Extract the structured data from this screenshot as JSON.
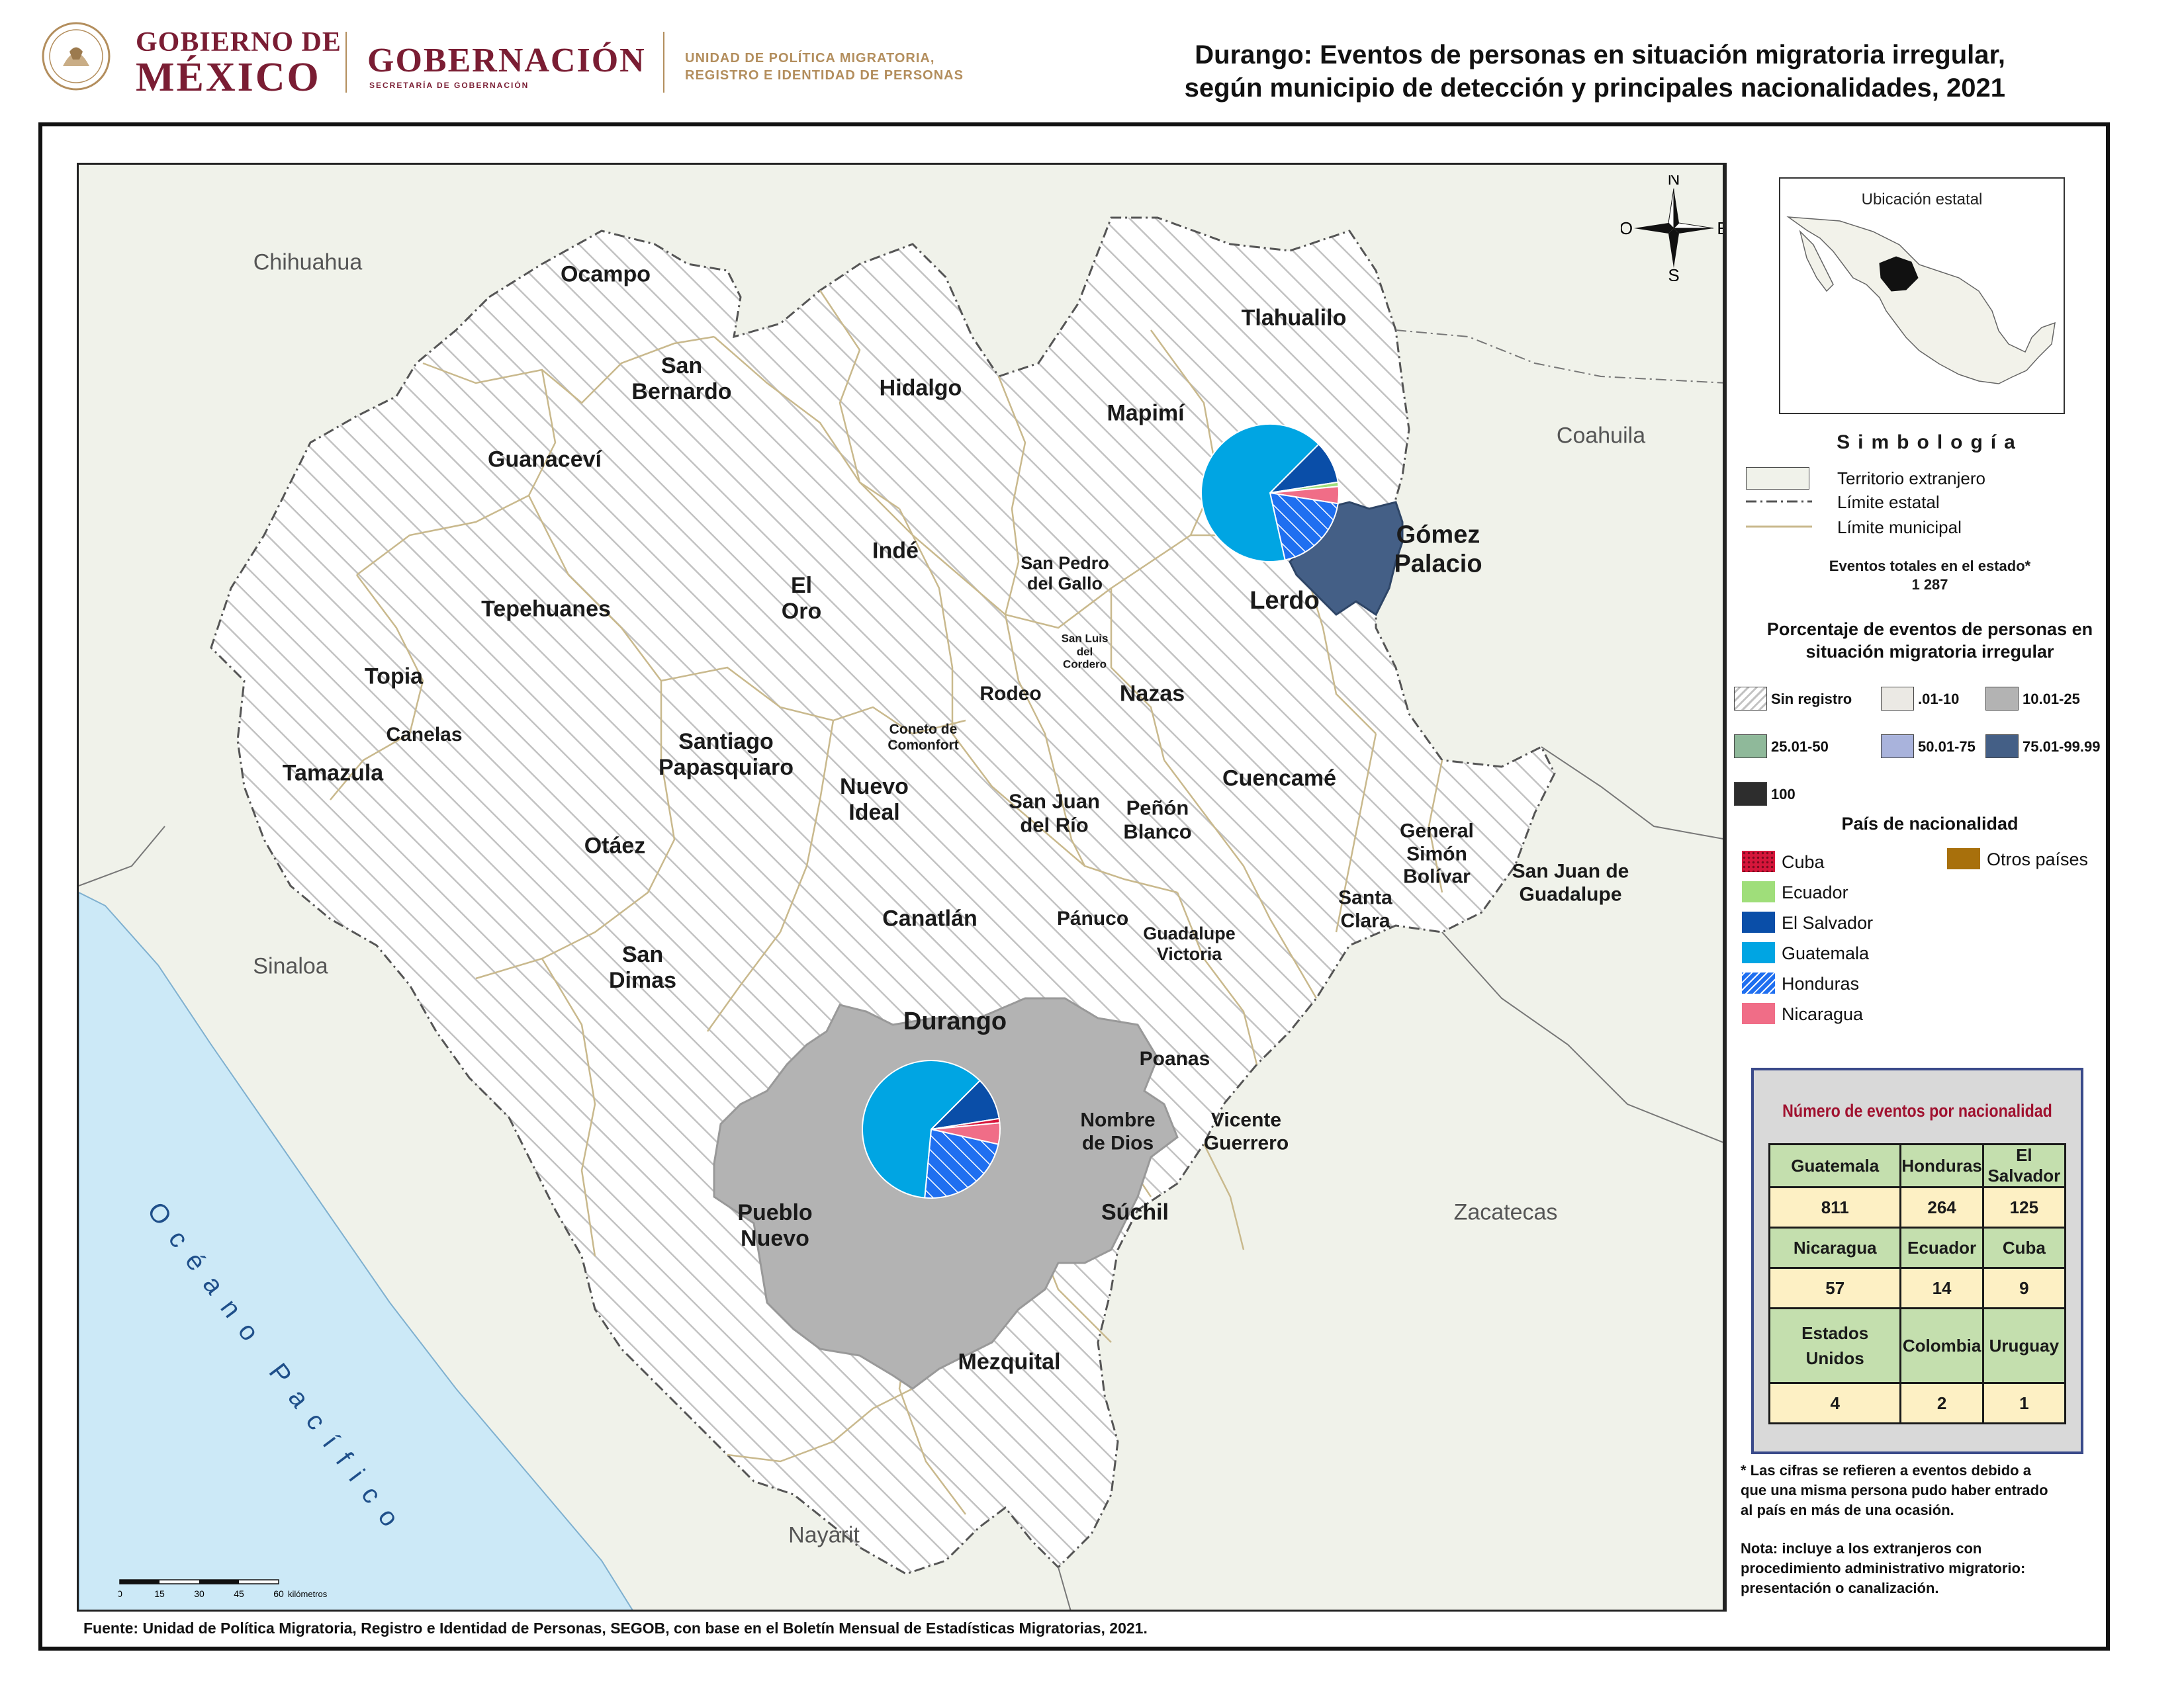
{
  "header": {
    "gob_line1": "GOBIERNO DE",
    "gob_line2": "MÉXICO",
    "gobernacion": "GOBERNACIÓN",
    "secretaria": "SECRETARÍA DE GOBERNACIÓN",
    "unidad_line1": "UNIDAD DE POLÍTICA MIGRATORIA,",
    "unidad_line2": "REGISTRO E IDENTIDAD DE PERSONAS",
    "title_line1": "Durango: Eventos de personas en situación migratoria irregular,",
    "title_line2": "según municipio de detección y principales nacionalidades, 2021"
  },
  "map": {
    "neighbors": [
      "Chihuahua",
      "Coahuila",
      "Sinaloa",
      "Zacatecas",
      "Nayarit"
    ],
    "ocean_label": "Océano Pacífico",
    "compass": {
      "n": "N",
      "s": "S",
      "e": "E",
      "o": "O"
    },
    "scale": {
      "ticks": [
        "0",
        "15",
        "30",
        "45",
        "60"
      ],
      "unit": "kilómetros"
    },
    "municipalities": [
      {
        "name": "Ocampo",
        "category": "Sin registro"
      },
      {
        "name": "San Bernardo",
        "category": "Sin registro"
      },
      {
        "name": "Hidalgo",
        "category": "Sin registro"
      },
      {
        "name": "Mapimí",
        "category": "Sin registro"
      },
      {
        "name": "Tlahualilo",
        "category": "Sin registro"
      },
      {
        "name": "Guanaceví",
        "category": "Sin registro"
      },
      {
        "name": "Indé",
        "category": "Sin registro"
      },
      {
        "name": "El Oro",
        "category": "Sin registro"
      },
      {
        "name": "San Pedro del Gallo",
        "category": "Sin registro"
      },
      {
        "name": "Gómez Palacio",
        "category": "75.01-99.99"
      },
      {
        "name": "Lerdo",
        "category": "Sin registro"
      },
      {
        "name": "Tepehuanes",
        "category": "Sin registro"
      },
      {
        "name": "San Luis del Cordero",
        "category": "Sin registro"
      },
      {
        "name": "Topia",
        "category": "Sin registro"
      },
      {
        "name": "Rodeo",
        "category": "Sin registro"
      },
      {
        "name": "Nazas",
        "category": "Sin registro"
      },
      {
        "name": "Canelas",
        "category": "Sin registro"
      },
      {
        "name": "Coneto de Comonfort",
        "category": "Sin registro"
      },
      {
        "name": "Santiago Papasquiaro",
        "category": "Sin registro"
      },
      {
        "name": "Tamazula",
        "category": "Sin registro"
      },
      {
        "name": "Nuevo Ideal",
        "category": "Sin registro"
      },
      {
        "name": "San Juan del Río",
        "category": "Sin registro"
      },
      {
        "name": "Cuencamé",
        "category": "Sin registro"
      },
      {
        "name": "Peñón Blanco",
        "category": "Sin registro"
      },
      {
        "name": "Otáez",
        "category": "Sin registro"
      },
      {
        "name": "General Simón Bolívar",
        "category": "Sin registro"
      },
      {
        "name": "San Juan de Guadalupe",
        "category": "Sin registro"
      },
      {
        "name": "Santa Clara",
        "category": "Sin registro"
      },
      {
        "name": "Canatlán",
        "category": "Sin registro"
      },
      {
        "name": "Pánuco",
        "category": "Sin registro"
      },
      {
        "name": "Guadalupe Victoria",
        "category": "Sin registro"
      },
      {
        "name": "San Dimas",
        "category": "Sin registro"
      },
      {
        "name": "Durango",
        "category": "10.01-25"
      },
      {
        "name": "Poanas",
        "category": "Sin registro"
      },
      {
        "name": "Nombre de Dios",
        "category": "Sin registro"
      },
      {
        "name": "Vicente Guerrero",
        "category": "Sin registro"
      },
      {
        "name": "Pueblo Nuevo",
        "category": "Sin registro"
      },
      {
        "name": "Súchil",
        "category": "Sin registro"
      },
      {
        "name": "Mezquital",
        "category": "Sin registro"
      }
    ],
    "pies": [
      {
        "municipio": "Gómez Palacio",
        "shares": [
          {
            "country": "Guatemala",
            "value": 66
          },
          {
            "country": "El Salvador",
            "value": 10
          },
          {
            "country": "Ecuador",
            "value": 1
          },
          {
            "country": "Nicaragua",
            "value": 4
          },
          {
            "country": "Honduras",
            "value": 19
          }
        ]
      },
      {
        "municipio": "Durango",
        "shares": [
          {
            "country": "Guatemala",
            "value": 61
          },
          {
            "country": "El Salvador",
            "value": 10
          },
          {
            "country": "Cuba",
            "value": 1
          },
          {
            "country": "Nicaragua",
            "value": 5
          },
          {
            "country": "Honduras",
            "value": 23
          }
        ]
      }
    ]
  },
  "sidebar": {
    "inset_title": "Ubicación estatal",
    "simbologia": "Simbología",
    "legend_items": [
      "Territorio extranjero",
      "Límite estatal",
      "Límite municipal"
    ],
    "total_label": "Eventos totales en el estado*",
    "total_value": "1 287",
    "pct_title_line1": "Porcentaje de eventos de personas en",
    "pct_title_line2": "situación migratoria irregular",
    "categories": [
      {
        "label": "Sin registro",
        "color": "#ffffff"
      },
      {
        "label": ".01-10",
        "color": "#ebe9e4"
      },
      {
        "label": "10.01-25",
        "color": "#b3b3b3"
      },
      {
        "label": "25.01-50",
        "color": "#8fb99a"
      },
      {
        "label": "50.01-75",
        "color": "#a9b3dc"
      },
      {
        "label": "75.01-99.99",
        "color": "#445f86"
      },
      {
        "label": "100",
        "color": "#2d2d2d"
      }
    ],
    "nat_title": "País de nacionalidad",
    "nationalities": [
      {
        "label": "Cuba",
        "color": "#d6163b"
      },
      {
        "label": "Ecuador",
        "color": "#9fde7a"
      },
      {
        "label": "El Salvador",
        "color": "#0a4ea8"
      },
      {
        "label": "Guatemala",
        "color": "#00a5e3"
      },
      {
        "label": "Honduras",
        "color": "#1f6ff0"
      },
      {
        "label": "Nicaragua",
        "color": "#f06d87"
      },
      {
        "label": "Otros países",
        "color": "#a8700c"
      }
    ],
    "table": {
      "title": "Número de eventos por nacionalidad",
      "rows": [
        {
          "headers": [
            "Guatemala",
            "Honduras",
            "El Salvador"
          ],
          "values": [
            "811",
            "264",
            "125"
          ]
        },
        {
          "headers": [
            "Nicaragua",
            "Ecuador",
            "Cuba"
          ],
          "values": [
            "57",
            "14",
            "9"
          ]
        },
        {
          "headers": [
            "Estados Unidos",
            "Colombia",
            "Uruguay"
          ],
          "values": [
            "4",
            "2",
            "1"
          ]
        }
      ]
    },
    "footnote_line1": "* Las cifras se refieren a eventos debido a",
    "footnote_line2": "que una misma persona pudo haber entrado",
    "footnote_line3": "al país en más de una ocasión.",
    "note_line1": "Nota: incluye a los extranjeros con",
    "note_line2": "procedimiento administrativo migratorio:",
    "note_line3": "presentación o canalización."
  },
  "fuente": "Fuente: Unidad de Política Migratoria, Registro e Identidad de Personas, SEGOB, con base en el Boletín Mensual de Estadísticas Migratorias, 2021."
}
